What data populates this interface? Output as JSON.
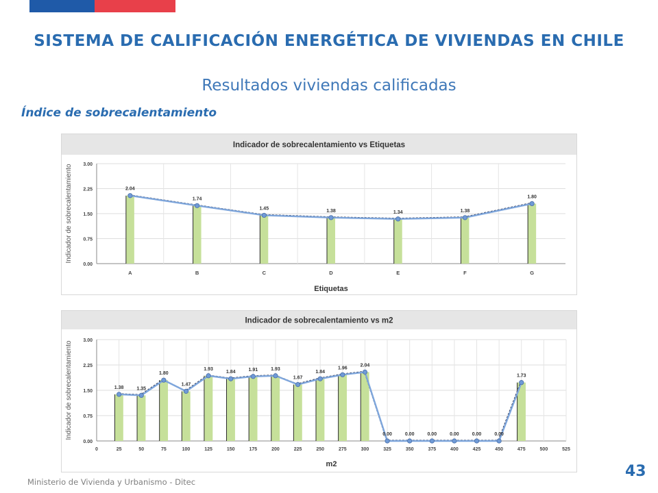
{
  "header": {
    "title": "SISTEMA DE CALIFICACIÓN ENERGÉTICA DE VIVIENDAS EN CHILE",
    "subtitle": "Resultados viviendas calificadas",
    "section_title": "Índice de sobrecalentamiento",
    "flag_colors": [
      "#1f5aa8",
      "#e8404a"
    ]
  },
  "footer": {
    "organization": "Ministerio de Vivienda y Urbanismo - Ditec",
    "page_number": "43"
  },
  "colors": {
    "bar": "#c6e09a",
    "line": "#7ea6dc",
    "header_band": "#e6e6e6",
    "accent": "#2a6cb0"
  },
  "chart_data": [
    {
      "type": "bar",
      "title": "Indicador de sobrecalentamiento vs Etiquetas",
      "xlabel": "Etiquetas",
      "ylabel": "Indicador de sobrecalentamiento",
      "ylim": [
        0,
        3
      ],
      "yticks": [
        "0.00",
        "0.75",
        "1.50",
        "2.25",
        "3.00"
      ],
      "categories": [
        "A",
        "B",
        "C",
        "D",
        "E",
        "F",
        "G"
      ],
      "series": [
        {
          "values": [
            2.04,
            1.74,
            1.45,
            1.38,
            1.34,
            1.38,
            1.8
          ]
        }
      ],
      "data_labels": [
        "2.04",
        "1.74",
        "1.45",
        "1.38",
        "1.34",
        "1.38",
        "1.80"
      ],
      "overlay": "line",
      "grid": true
    },
    {
      "type": "bar",
      "title": "Indicador de sobrecalentamiento vs m2",
      "xlabel": "m2",
      "ylabel": "Indicador de sobrecalentamiento",
      "ylim": [
        0,
        3
      ],
      "yticks": [
        "0.00",
        "0.75",
        "1.50",
        "2.25",
        "3.00"
      ],
      "xlim": [
        0,
        525
      ],
      "xticks": [
        "0",
        "25",
        "50",
        "75",
        "100",
        "125",
        "150",
        "175",
        "200",
        "225",
        "250",
        "275",
        "300",
        "325",
        "350",
        "375",
        "400",
        "425",
        "450",
        "475",
        "500",
        "525"
      ],
      "x": [
        25,
        50,
        75,
        100,
        125,
        150,
        175,
        200,
        225,
        250,
        275,
        300,
        325,
        350,
        375,
        400,
        425,
        450,
        475
      ],
      "series": [
        {
          "values": [
            1.38,
            1.35,
            1.8,
            1.47,
            1.93,
            1.84,
            1.91,
            1.93,
            1.67,
            1.84,
            1.96,
            2.04,
            0.0,
            0.0,
            0.0,
            0.0,
            0.0,
            0.0,
            1.73
          ]
        }
      ],
      "data_labels": [
        "1.38",
        "1.35",
        "1.80",
        "1.47",
        "1.93",
        "1.84",
        "1.91",
        "1.93",
        "1.67",
        "1.84",
        "1.96",
        "2.04",
        "0.00",
        "0.00",
        "0.00",
        "0.00",
        "0.00",
        "0.00",
        "1.73"
      ],
      "overlay": "line",
      "grid": true
    }
  ]
}
